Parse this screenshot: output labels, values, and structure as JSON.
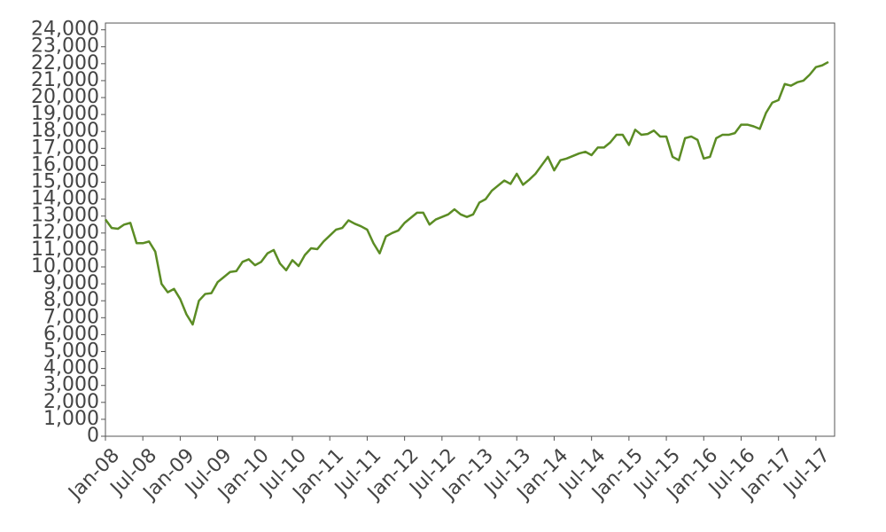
{
  "chart_data": {
    "type": "line",
    "x": [
      "2008-01",
      "2008-02",
      "2008-03",
      "2008-04",
      "2008-05",
      "2008-06",
      "2008-07",
      "2008-08",
      "2008-09",
      "2008-10",
      "2008-11",
      "2008-12",
      "2009-01",
      "2009-02",
      "2009-03",
      "2009-04",
      "2009-05",
      "2009-06",
      "2009-07",
      "2009-08",
      "2009-09",
      "2009-10",
      "2009-11",
      "2009-12",
      "2010-01",
      "2010-02",
      "2010-03",
      "2010-04",
      "2010-05",
      "2010-06",
      "2010-07",
      "2010-08",
      "2010-09",
      "2010-10",
      "2010-11",
      "2010-12",
      "2011-01",
      "2011-02",
      "2011-03",
      "2011-04",
      "2011-05",
      "2011-06",
      "2011-07",
      "2011-08",
      "2011-09",
      "2011-10",
      "2011-11",
      "2011-12",
      "2012-01",
      "2012-02",
      "2012-03",
      "2012-04",
      "2012-05",
      "2012-06",
      "2012-07",
      "2012-08",
      "2012-09",
      "2012-10",
      "2012-11",
      "2012-12",
      "2013-01",
      "2013-02",
      "2013-03",
      "2013-04",
      "2013-05",
      "2013-06",
      "2013-07",
      "2013-08",
      "2013-09",
      "2013-10",
      "2013-11",
      "2013-12",
      "2014-01",
      "2014-02",
      "2014-03",
      "2014-04",
      "2014-05",
      "2014-06",
      "2014-07",
      "2014-08",
      "2014-09",
      "2014-10",
      "2014-11",
      "2014-12",
      "2015-01",
      "2015-02",
      "2015-03",
      "2015-04",
      "2015-05",
      "2015-06",
      "2015-07",
      "2015-08",
      "2015-09",
      "2015-10",
      "2015-11",
      "2015-12",
      "2016-01",
      "2016-02",
      "2016-03",
      "2016-04",
      "2016-05",
      "2016-06",
      "2016-07",
      "2016-08",
      "2016-09",
      "2016-10",
      "2016-11",
      "2016-12",
      "2017-01",
      "2017-02",
      "2017-03",
      "2017-04",
      "2017-05",
      "2017-06",
      "2017-07",
      "2017-08",
      "2017-09"
    ],
    "series": [
      {
        "color": "#5b8c24",
        "values": [
          12800,
          12300,
          12250,
          12500,
          12600,
          11400,
          11400,
          11500,
          10900,
          9000,
          8500,
          8700,
          8100,
          7200,
          6600,
          8000,
          8400,
          8450,
          9100,
          9400,
          9700,
          9750,
          10300,
          10450,
          10100,
          10300,
          10800,
          11000,
          10200,
          9800,
          10400,
          10050,
          10700,
          11100,
          11050,
          11500,
          11850,
          12200,
          12300,
          12750,
          12550,
          12400,
          12200,
          11400,
          10800,
          11800,
          12000,
          12150,
          12600,
          12900,
          13200,
          13200,
          12500,
          12800,
          12950,
          13100,
          13400,
          13100,
          12950,
          13100,
          13800,
          14000,
          14500,
          14800,
          15100,
          14900,
          15500,
          14850,
          15150,
          15500,
          16000,
          16500,
          15700,
          16300,
          16400,
          16550,
          16700,
          16800,
          16600,
          17050,
          17050,
          17350,
          17800,
          17800,
          17200,
          18100,
          17800,
          17850,
          18050,
          17700,
          17700,
          16500,
          16300,
          17600,
          17700,
          17500,
          16400,
          16500,
          17600,
          17800,
          17800,
          17900,
          18400,
          18400,
          18300,
          18150,
          19100,
          19700,
          19850,
          20800,
          20700,
          20900,
          21000,
          21350,
          21800,
          21900,
          22100
        ]
      }
    ],
    "xlim": [
      "2008-01",
      "2017-10"
    ],
    "xticks": [
      {
        "value": "2008-01",
        "label": "Jan-08"
      },
      {
        "value": "2008-07",
        "label": "Jul-08"
      },
      {
        "value": "2009-01",
        "label": "Jan-09"
      },
      {
        "value": "2009-07",
        "label": "Jul-09"
      },
      {
        "value": "2010-01",
        "label": "Jan-10"
      },
      {
        "value": "2010-07",
        "label": "Jul-10"
      },
      {
        "value": "2011-01",
        "label": "Jan-11"
      },
      {
        "value": "2011-07",
        "label": "Jul-11"
      },
      {
        "value": "2012-01",
        "label": "Jan-12"
      },
      {
        "value": "2012-07",
        "label": "Jul-12"
      },
      {
        "value": "2013-01",
        "label": "Jan-13"
      },
      {
        "value": "2013-07",
        "label": "Jul-13"
      },
      {
        "value": "2014-01",
        "label": "Jan-14"
      },
      {
        "value": "2014-07",
        "label": "Jul-14"
      },
      {
        "value": "2015-01",
        "label": "Jan-15"
      },
      {
        "value": "2015-07",
        "label": "Jul-15"
      },
      {
        "value": "2016-01",
        "label": "Jan-16"
      },
      {
        "value": "2016-07",
        "label": "Jul-16"
      },
      {
        "value": "2017-01",
        "label": "Jan-17"
      },
      {
        "value": "2017-07",
        "label": "Jul-17"
      }
    ],
    "ylim": [
      0,
      24400
    ],
    "yticks": [
      0,
      {
        "value": 1000,
        "label": "1,000"
      },
      {
        "value": 2000,
        "label": "2,000"
      },
      {
        "value": 3000,
        "label": "3,000"
      },
      {
        "value": 4000,
        "label": "4,000"
      },
      {
        "value": 5000,
        "label": "5,000"
      },
      {
        "value": 6000,
        "label": "6,000"
      },
      {
        "value": 7000,
        "label": "7,000"
      },
      {
        "value": 8000,
        "label": "8,000"
      },
      {
        "value": 9000,
        "label": "9,000"
      },
      {
        "value": 10000,
        "label": "10,000"
      },
      {
        "value": 11000,
        "label": "11,000"
      },
      {
        "value": 12000,
        "label": "12,000"
      },
      {
        "value": 13000,
        "label": "13,000"
      },
      {
        "value": 14000,
        "label": "14,000"
      },
      {
        "value": 15000,
        "label": "15,000"
      },
      {
        "value": 16000,
        "label": "16,000"
      },
      {
        "value": 17000,
        "label": "17,000"
      },
      {
        "value": 18000,
        "label": "18,000"
      },
      {
        "value": 19000,
        "label": "19,000"
      },
      {
        "value": 20000,
        "label": "20,000"
      },
      {
        "value": 21000,
        "label": "21,000"
      },
      {
        "value": 22000,
        "label": "22,000"
      },
      {
        "value": 23000,
        "label": "23,000"
      },
      {
        "value": 24000,
        "label": "24,000"
      }
    ],
    "grid": false
  }
}
